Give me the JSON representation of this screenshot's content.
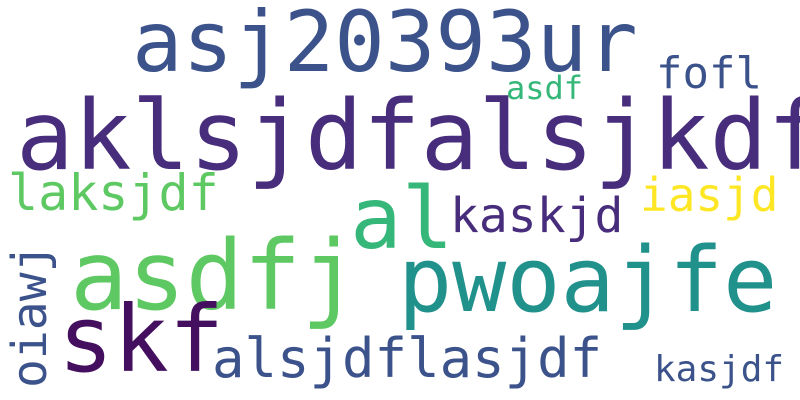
{
  "colors": {
    "background": "#ffffff",
    "dark_purple": "#482878",
    "deep_purple": "#440f5e",
    "slate_blue": "#3b528b",
    "teal": "#21918c",
    "green": "#35b779",
    "light_green": "#5ec962",
    "yellow": "#fde725"
  },
  "words": [
    {
      "text": "asj20393ur",
      "color": "#3b528b"
    },
    {
      "text": "fofl",
      "color": "#3b528b"
    },
    {
      "text": "asdf",
      "color": "#35b779"
    },
    {
      "text": "aklsjdfalsjkdf",
      "color": "#472d7b"
    },
    {
      "text": "laksjdf",
      "color": "#5ec962"
    },
    {
      "text": "al",
      "color": "#35b779"
    },
    {
      "text": "kaskjd",
      "color": "#472d7b"
    },
    {
      "text": "iasjd",
      "color": "#fde725"
    },
    {
      "text": "asdfj",
      "color": "#5ec962"
    },
    {
      "text": "pwoajfe",
      "color": "#21918c"
    },
    {
      "text": "skf",
      "color": "#440f5e"
    },
    {
      "text": "alsjdflasjdf",
      "color": "#3b528b"
    },
    {
      "text": "kasjdf",
      "color": "#3b528b"
    },
    {
      "text": "oiawj",
      "color": "#3b528b"
    }
  ]
}
